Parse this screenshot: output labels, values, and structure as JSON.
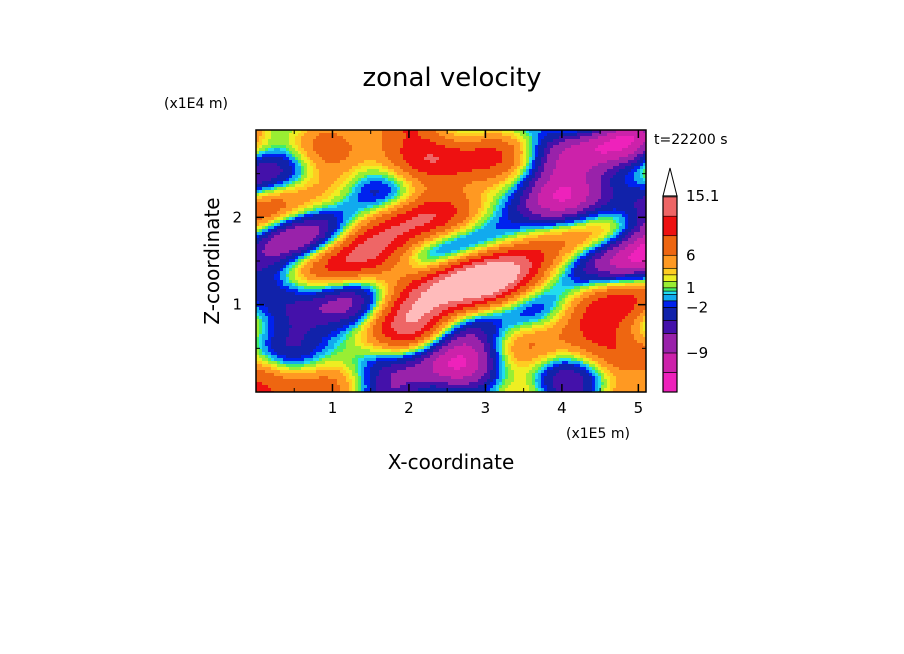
{
  "chart_data": {
    "type": "heatmap",
    "title": "zonal velocity",
    "xlabel": "X-coordinate",
    "ylabel": "Z-coordinate",
    "x_unit": "(x1E5 m)",
    "y_unit": "(x1E4 m)",
    "time_label": "t=22200 s",
    "xlim": [
      0,
      5.1
    ],
    "ylim": [
      0,
      3.0
    ],
    "x_ticks": [
      1,
      2,
      3,
      4,
      5
    ],
    "y_ticks": [
      1,
      2
    ],
    "colorbar": {
      "tick_labels": [
        "15.1",
        "6",
        "1",
        "−2",
        "−9"
      ],
      "tick_values": [
        15.1,
        6,
        1,
        -2,
        -9
      ],
      "levels": [
        {
          "value": -15,
          "color": "#ee22bb"
        },
        {
          "value": -12,
          "color": "#cc22aa"
        },
        {
          "value": -9,
          "color": "#9922aa"
        },
        {
          "value": -6,
          "color": "#4411aa"
        },
        {
          "value": -4,
          "color": "#1122aa"
        },
        {
          "value": -2,
          "color": "#0022ee"
        },
        {
          "value": -1,
          "color": "#11aaee"
        },
        {
          "value": 0,
          "color": "#22ddee"
        },
        {
          "value": 0.5,
          "color": "#44ee66"
        },
        {
          "value": 1,
          "color": "#99ee33"
        },
        {
          "value": 2,
          "color": "#eeee22"
        },
        {
          "value": 3,
          "color": "#ffcc22"
        },
        {
          "value": 4,
          "color": "#ff9922"
        },
        {
          "value": 6,
          "color": "#ee6611"
        },
        {
          "value": 9,
          "color": "#ee1111"
        },
        {
          "value": 12,
          "color": "#ee6666"
        },
        {
          "value": 15.1,
          "color": "#ffbbbb"
        }
      ]
    },
    "grid": false,
    "legend": "colorbar-right"
  }
}
